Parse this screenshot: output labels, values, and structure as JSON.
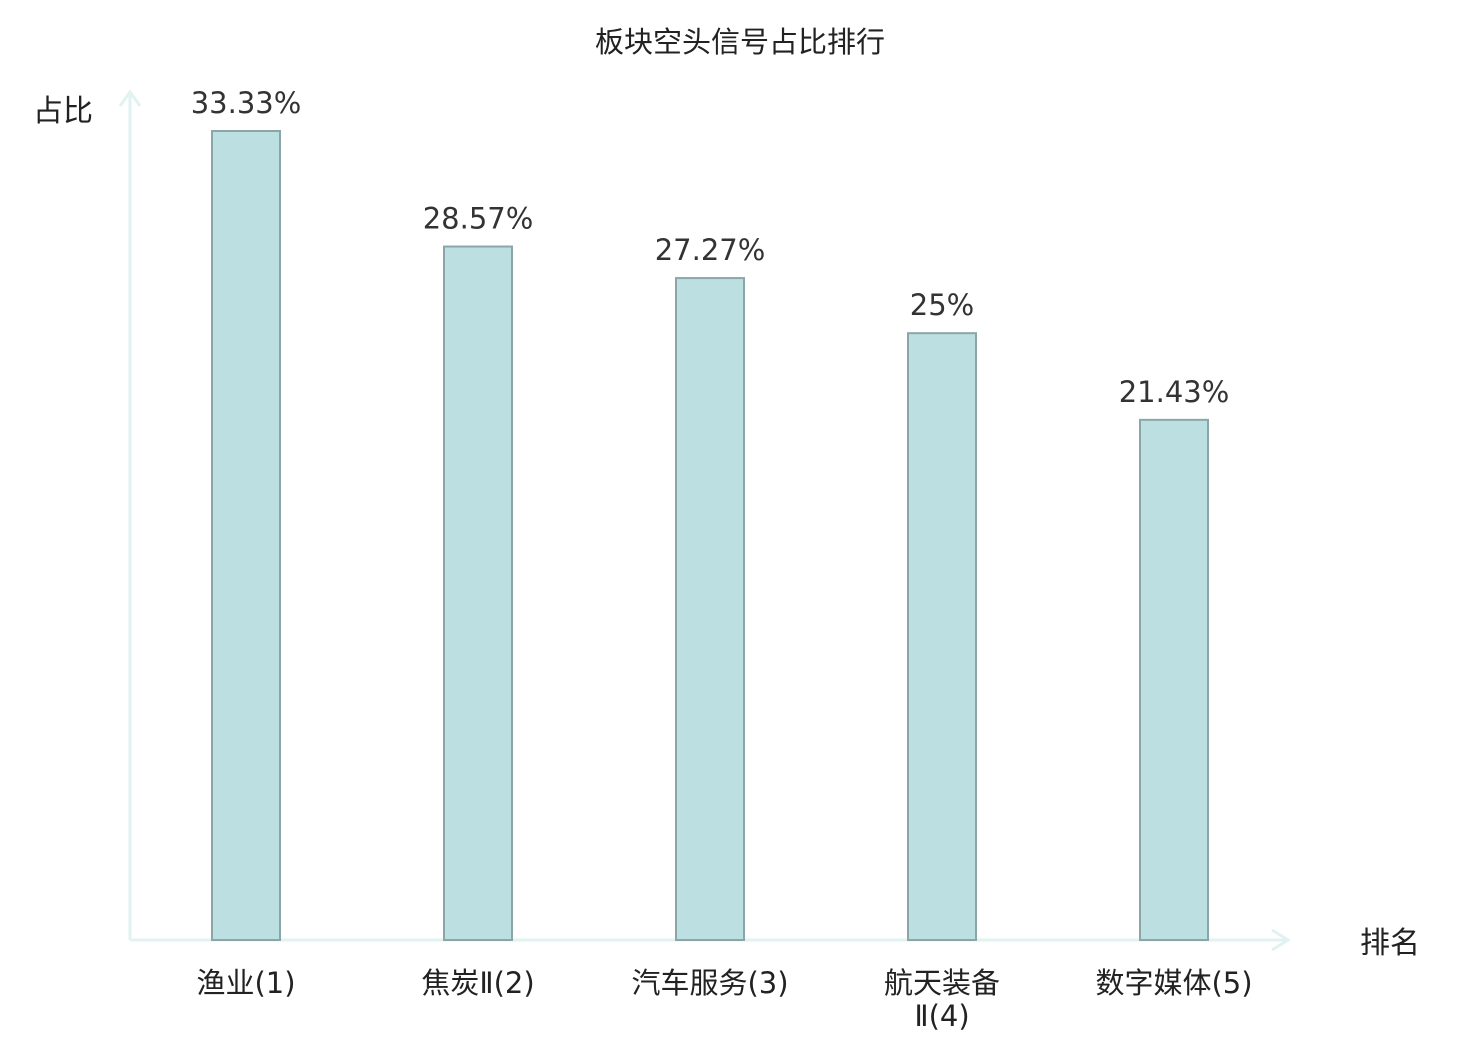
{
  "chart_data": {
    "type": "bar",
    "title": "板块空头信号占比排行",
    "ylabel": "占比",
    "xlabel": "排名",
    "categories": [
      [
        "渔业(1)"
      ],
      [
        "焦炭Ⅱ(2)"
      ],
      [
        "汽车服务(3)"
      ],
      [
        "航天装备",
        "Ⅱ(4)"
      ],
      [
        "数字媒体(5)"
      ]
    ],
    "values": [
      33.33,
      28.57,
      27.27,
      25,
      21.43
    ],
    "value_labels": [
      "33.33%",
      "28.57%",
      "27.27%",
      "25%",
      "21.43%"
    ],
    "highlight_index": 3,
    "ylim": [
      0,
      33.33
    ],
    "grid": false,
    "colors": {
      "bar_fill": "#bce0e1",
      "bar_stroke": "#8aa6a8",
      "axis": "#e0f3f1",
      "highlight_text": "#e0191b",
      "text": "#222222"
    }
  }
}
